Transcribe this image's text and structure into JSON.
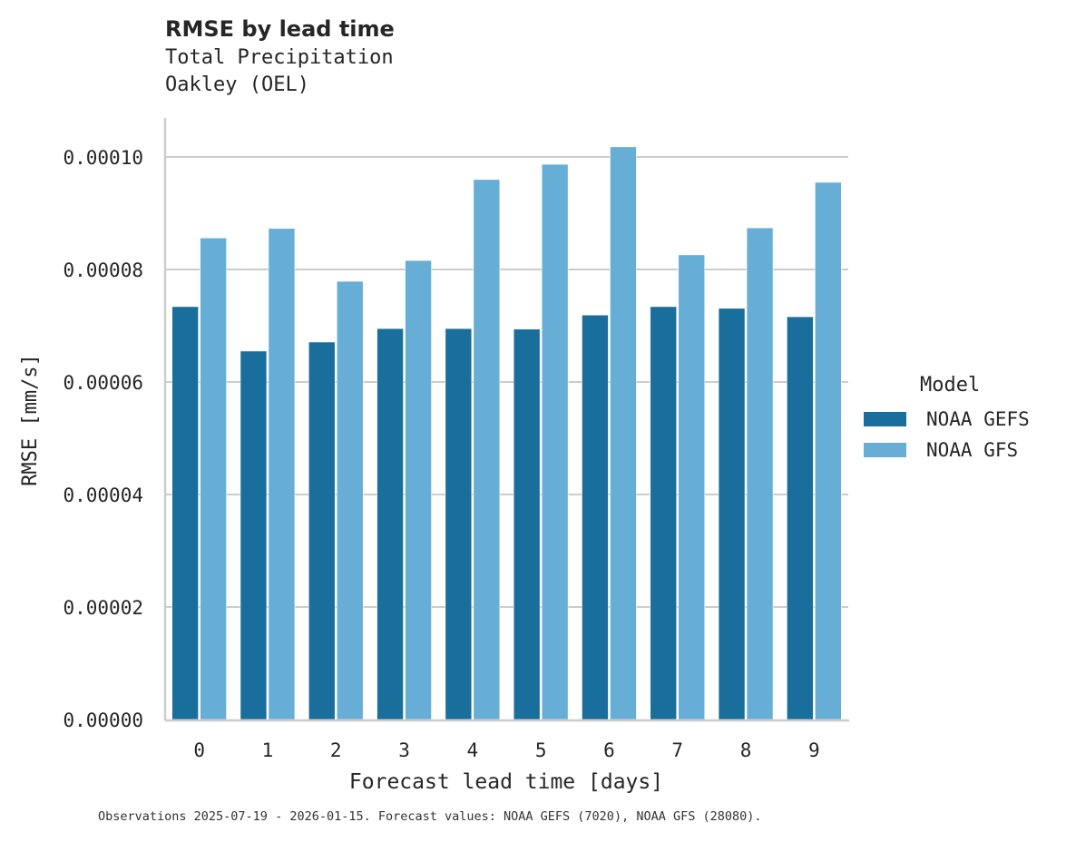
{
  "header": {
    "title": "RMSE by lead time",
    "subtitle_line1": "Total Precipitation",
    "subtitle_line2": "Oakley (OEL)"
  },
  "legend": {
    "title": "Model",
    "items": [
      {
        "label": "NOAA GEFS",
        "color": "#1a6e9c"
      },
      {
        "label": "NOAA GFS",
        "color": "#67aed7"
      }
    ]
  },
  "caption": "Observations 2025-07-19 - 2026-01-15. Forecast values: NOAA GEFS (7020), NOAA GFS (28080).",
  "chart_data": {
    "type": "bar",
    "title": "RMSE by lead time",
    "subtitle": "Total Precipitation / Oakley (OEL)",
    "xlabel": "Forecast lead time [days]",
    "ylabel": "RMSE [mm/s]",
    "categories": [
      "0",
      "1",
      "2",
      "3",
      "4",
      "5",
      "6",
      "7",
      "8",
      "9"
    ],
    "series": [
      {
        "name": "NOAA GEFS",
        "color": "#1a6e9c",
        "values": [
          7.34e-05,
          6.55e-05,
          6.71e-05,
          6.95e-05,
          6.95e-05,
          6.94e-05,
          7.19e-05,
          7.34e-05,
          7.31e-05,
          7.16e-05
        ]
      },
      {
        "name": "NOAA GFS",
        "color": "#67aed7",
        "values": [
          8.56e-05,
          8.73e-05,
          7.79e-05,
          8.16e-05,
          9.6e-05,
          9.87e-05,
          0.0001018,
          8.26e-05,
          8.74e-05,
          9.55e-05
        ]
      }
    ],
    "yticks": [
      "0.00000",
      "0.00002",
      "0.00004",
      "0.00006",
      "0.00008",
      "0.00010"
    ],
    "ytick_values": [
      0,
      2e-05,
      4e-05,
      6e-05,
      8e-05,
      0.0001
    ],
    "ylim": [
      0,
      0.000107
    ],
    "grid": "horizontal",
    "legend_position": "right"
  }
}
